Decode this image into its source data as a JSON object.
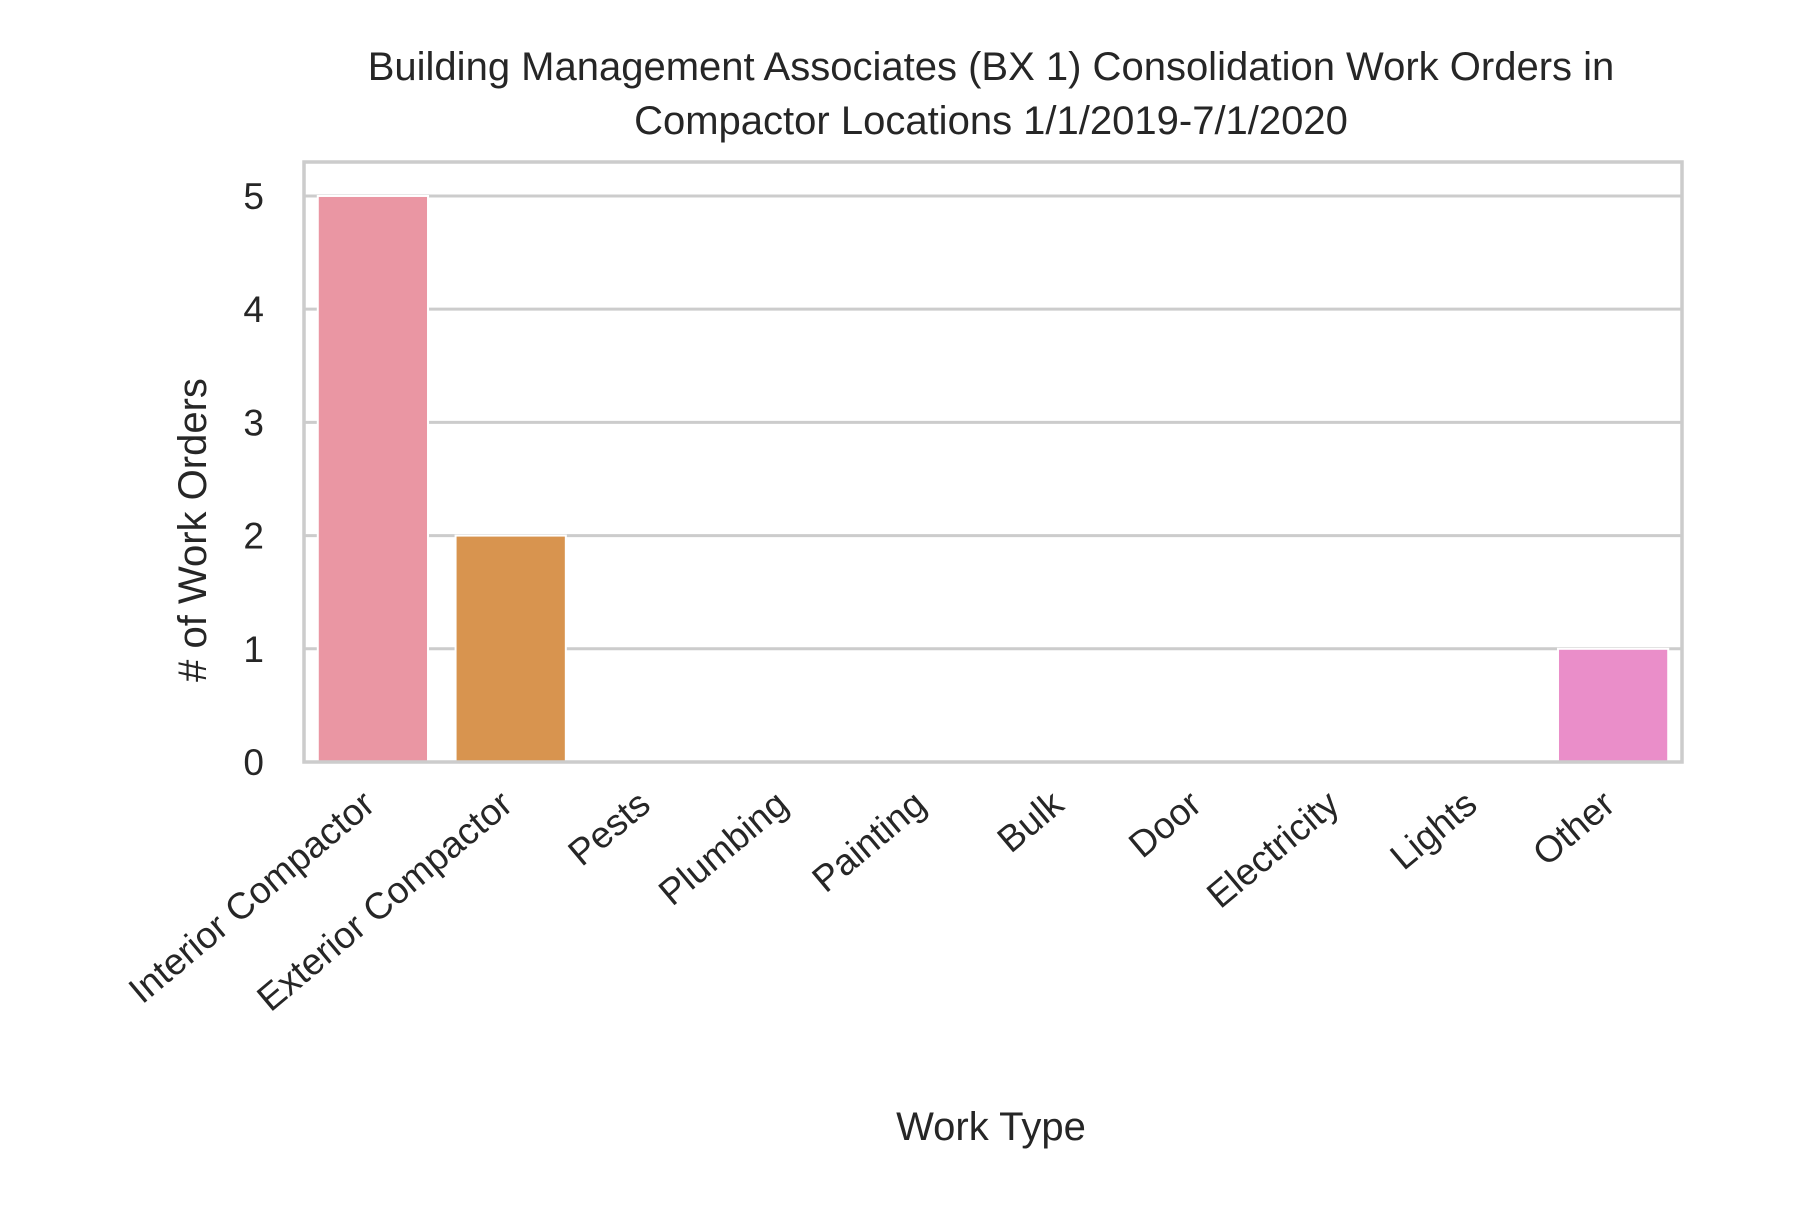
{
  "chart_data": {
    "type": "bar",
    "title": "Building Management Associates (BX 1) Consolidation Work Orders in Compactor Locations 1/1/2019-7/1/2020",
    "title_lines": [
      "Building Management Associates (BX 1) Consolidation Work Orders in",
      "Compactor Locations 1/1/2019-7/1/2020"
    ],
    "xlabel": "Work Type",
    "ylabel": "# of Work Orders",
    "categories": [
      "Interior Compactor",
      "Exterior Compactor",
      "Pests",
      "Plumbing",
      "Painting",
      "Bulk",
      "Door",
      "Electricity",
      "Lights",
      "Other"
    ],
    "values": [
      5,
      2,
      0,
      0,
      0,
      0,
      0,
      0,
      0,
      1
    ],
    "colors": [
      "#ea96a3",
      "#d8944f",
      "#b7a05f",
      "#93a84e",
      "#4fb05c",
      "#53aea0",
      "#55aac2",
      "#8fa8e6",
      "#c69ce9",
      "#ea8ec9"
    ],
    "ylim": [
      0,
      5.3
    ],
    "yticks": [
      0,
      1,
      2,
      3,
      4,
      5
    ],
    "grid": true,
    "grid_color": "#cccccc",
    "frame_color": "#cccccc"
  }
}
